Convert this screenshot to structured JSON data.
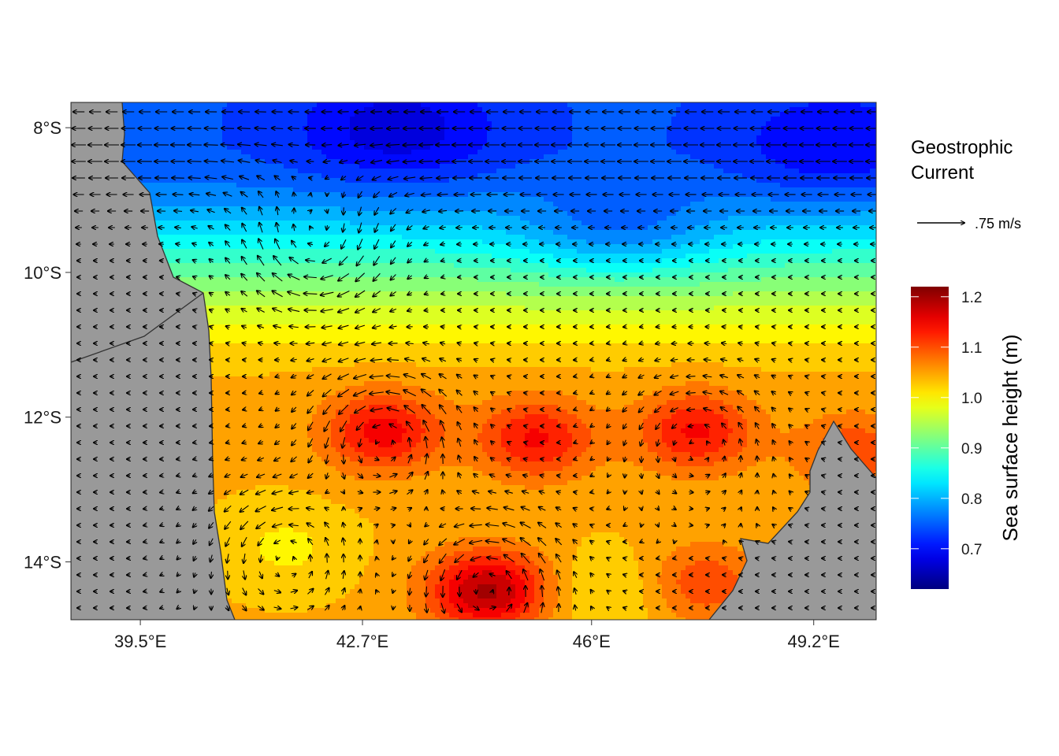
{
  "chart_data": {
    "type": "heatmap",
    "title": "",
    "x_ticks": [
      "39.5°E",
      "42.7°E",
      "46°E",
      "49.2°E"
    ],
    "y_ticks": [
      "8°S",
      "10°S",
      "12°S",
      "14°S"
    ],
    "x_tick_values": [
      39.5,
      42.7,
      46.0,
      49.2
    ],
    "y_tick_values": [
      -8,
      -10,
      -12,
      -14
    ],
    "xlim": [
      38.5,
      50.1
    ],
    "ylim": [
      -14.8,
      -7.65
    ],
    "field": {
      "name": "Sea surface height (m)",
      "range": [
        0.62,
        1.22
      ],
      "colorbar_ticks": [
        "0.7",
        "0.8",
        "0.9",
        "1.0",
        "1.1",
        "1.2"
      ],
      "colorbar_tick_values": [
        0.7,
        0.8,
        0.9,
        1.0,
        1.1,
        1.2
      ],
      "colormap": [
        "#00007f",
        "#0000ff",
        "#0080ff",
        "#00ffff",
        "#80ff80",
        "#ffff00",
        "#ff8000",
        "#ff0000",
        "#7f0000"
      ],
      "features": [
        {
          "kind": "background_north",
          "value": 0.74
        },
        {
          "kind": "high",
          "lon": 43.0,
          "lat": -12.2,
          "value": 1.17
        },
        {
          "kind": "high",
          "lon": 45.2,
          "lat": -12.3,
          "value": 1.16
        },
        {
          "kind": "high",
          "lon": 47.5,
          "lat": -12.2,
          "value": 1.16
        },
        {
          "kind": "high",
          "lon": 44.5,
          "lat": -14.4,
          "value": 1.22
        },
        {
          "kind": "high",
          "lon": 47.6,
          "lat": -14.3,
          "value": 1.12
        },
        {
          "kind": "high",
          "lon": 49.8,
          "lat": -12.5,
          "value": 1.12
        },
        {
          "kind": "low",
          "lon": 43.2,
          "lat": -8.0,
          "value": 0.66
        },
        {
          "kind": "low",
          "lon": 46.4,
          "lat": -9.2,
          "value": 0.74
        },
        {
          "kind": "low",
          "lon": 49.5,
          "lat": -8.2,
          "value": 0.68
        },
        {
          "kind": "moderate",
          "lon": 41.6,
          "lat": -13.8,
          "value": 1.0
        },
        {
          "kind": "moderate",
          "lon": 46.3,
          "lat": -14.4,
          "value": 1.0
        }
      ]
    },
    "vectors": {
      "name": "Geostrophic Current",
      "reference_label": ".75 m/s",
      "reference_speed": 0.75,
      "eddies": [
        {
          "lon": 43.0,
          "lat": -12.3,
          "sense": "anticyclonic",
          "strength": 0.6
        },
        {
          "lon": 44.5,
          "lat": -14.3,
          "sense": "anticyclonic",
          "strength": 0.6
        },
        {
          "lon": 41.6,
          "lat": -13.9,
          "sense": "anticyclonic",
          "strength": 0.5
        },
        {
          "lon": 42.0,
          "lat": -9.6,
          "sense": "cyclonic",
          "strength": 0.55
        },
        {
          "lon": 47.5,
          "lat": -12.3,
          "sense": "anticyclonic",
          "strength": 0.35
        }
      ],
      "mean_flow_north": "westward"
    },
    "land_color": "#999999",
    "legend_position": "right"
  },
  "legend": {
    "vector_title_line1": "Geostrophic",
    "vector_title_line2": "Current",
    "vector_ref_label": ".75 m/s",
    "colorbar_title": "Sea surface height (m)"
  }
}
